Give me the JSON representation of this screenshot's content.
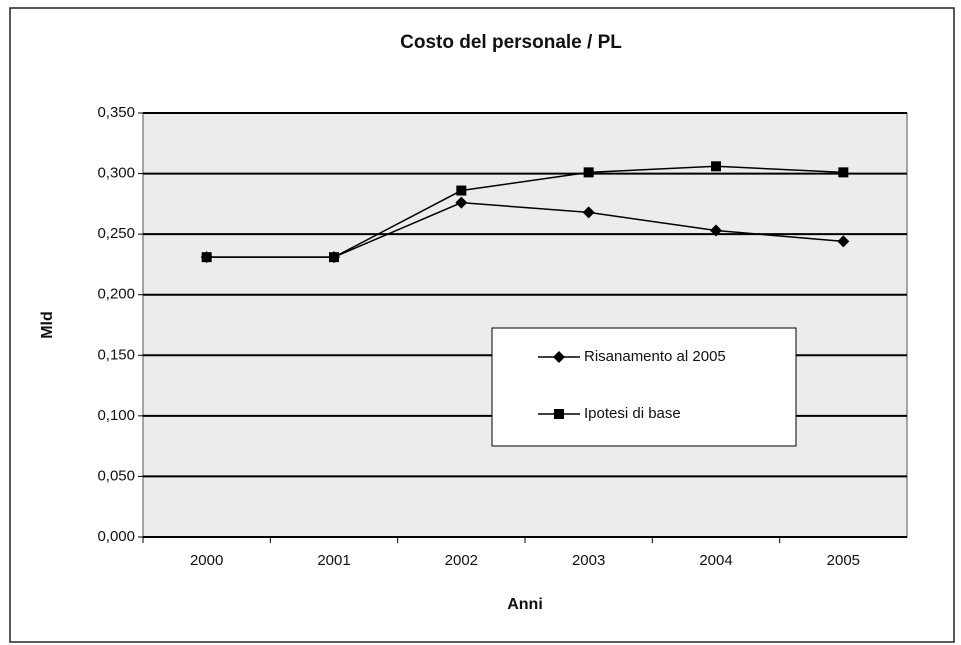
{
  "chart_data": {
    "type": "line",
    "title": "Costo del personale / PL",
    "x_label": "Anni",
    "y_label": "Mld",
    "categories": [
      "2000",
      "2001",
      "2002",
      "2003",
      "2004",
      "2005"
    ],
    "series": [
      {
        "name": "Risanamento al 2005",
        "color": "#000000",
        "marker": "diamond",
        "values": [
          0.231,
          0.231,
          0.276,
          0.268,
          0.253,
          0.244
        ]
      },
      {
        "name": "Ipotesi di base",
        "color": "#000000",
        "marker": "square",
        "values": [
          0.231,
          0.231,
          0.286,
          0.301,
          0.306,
          0.301
        ]
      }
    ],
    "ylim": [
      0,
      0.35
    ],
    "yticks": [
      {
        "value": 0,
        "label": "0,000"
      },
      {
        "value": 0.05,
        "label": "0,050"
      },
      {
        "value": 0.1,
        "label": "0,100"
      },
      {
        "value": 0.15,
        "label": "0,150"
      },
      {
        "value": 0.2,
        "label": "0,200"
      },
      {
        "value": 0.25,
        "label": "0,250"
      },
      {
        "value": 0.3,
        "label": "0,300"
      },
      {
        "value": 0.35,
        "label": "0,350"
      }
    ],
    "grid": true
  }
}
